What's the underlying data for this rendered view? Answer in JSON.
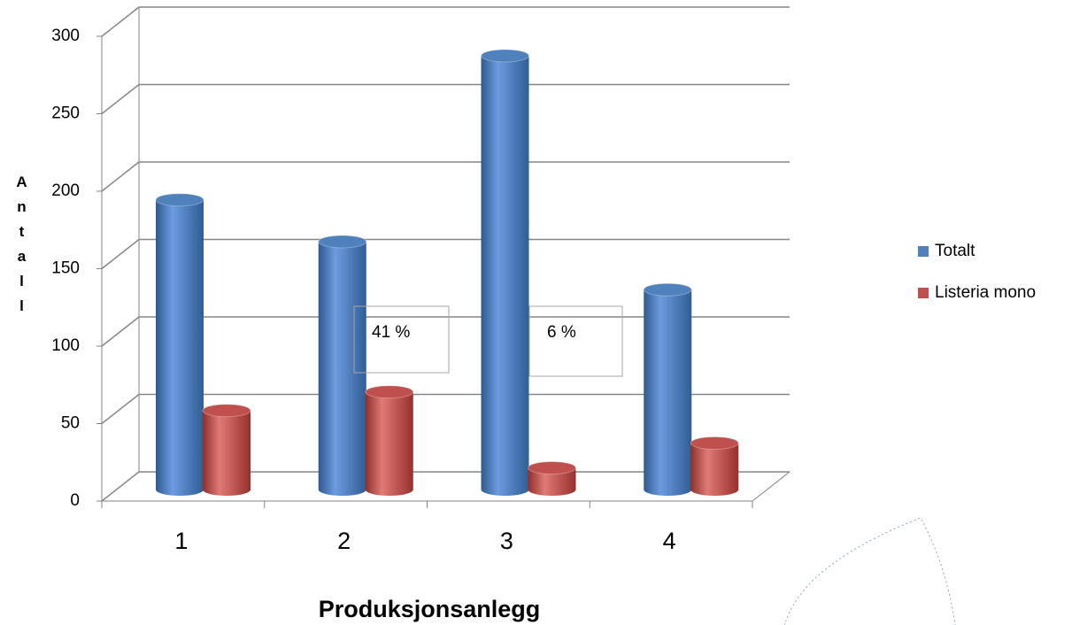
{
  "chart_data": {
    "type": "bar3d",
    "ylabel": "Antall",
    "xlabel": "Produksjonsanlegg",
    "categories": [
      "1",
      "2",
      "3",
      "4"
    ],
    "series": [
      {
        "name": "Totalt",
        "color": "#4f81bd",
        "values": [
          187,
          160,
          280,
          129
        ]
      },
      {
        "name": "Listeria mono",
        "color": "#c0504d",
        "values": [
          51,
          63,
          14,
          30
        ]
      }
    ],
    "ylim": [
      0,
      300
    ],
    "yticks": [
      0,
      50,
      100,
      150,
      200,
      250,
      300
    ],
    "grid": true,
    "legend": "right",
    "annotations": [
      "41 %",
      "6 %"
    ]
  }
}
